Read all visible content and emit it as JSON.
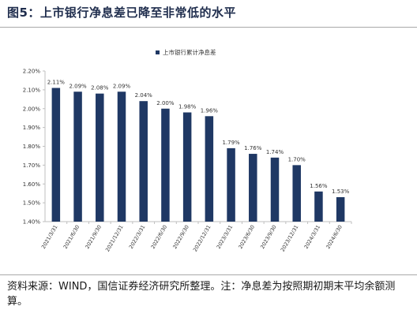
{
  "figure": {
    "title": "图5：上市银行净息差已降至非常低的水平",
    "source_note": "资料来源：WIND，国信证券经济研究所整理。注：净息差为按照期初期末平均余额测算。"
  },
  "colors": {
    "bar": "#1f3864",
    "title": "#1f2d4d",
    "axis": "#bfbfbf",
    "text": "#333333"
  },
  "chart_data": {
    "type": "bar",
    "title": "",
    "xlabel": "",
    "ylabel": "",
    "legend_position": "top-center",
    "grid": false,
    "ylim": [
      1.4,
      2.2
    ],
    "yticks": [
      "1.40%",
      "1.50%",
      "1.60%",
      "1.70%",
      "1.80%",
      "1.90%",
      "2.00%",
      "2.10%",
      "2.20%"
    ],
    "categories": [
      "2021/3/31",
      "2021/6/30",
      "2021/9/30",
      "2021/12/31",
      "2022/3/31",
      "2022/6/30",
      "2022/9/30",
      "2022/12/31",
      "2023/3/31",
      "2023/6/30",
      "2023/9/30",
      "2023/12/31",
      "2024/3/31",
      "2024/6/30"
    ],
    "series": [
      {
        "name": "上市银行累计净息差",
        "values": [
          2.11,
          2.09,
          2.08,
          2.09,
          2.04,
          2.0,
          1.98,
          1.96,
          1.79,
          1.76,
          1.74,
          1.7,
          1.56,
          1.53
        ],
        "labels": [
          "2.11%",
          "2.09%",
          "2.08%",
          "2.09%",
          "2.04%",
          "2.00%",
          "1.98%",
          "1.96%",
          "1.79%",
          "1.76%",
          "1.74%",
          "1.70%",
          "1.56%",
          "1.53%"
        ]
      }
    ]
  }
}
